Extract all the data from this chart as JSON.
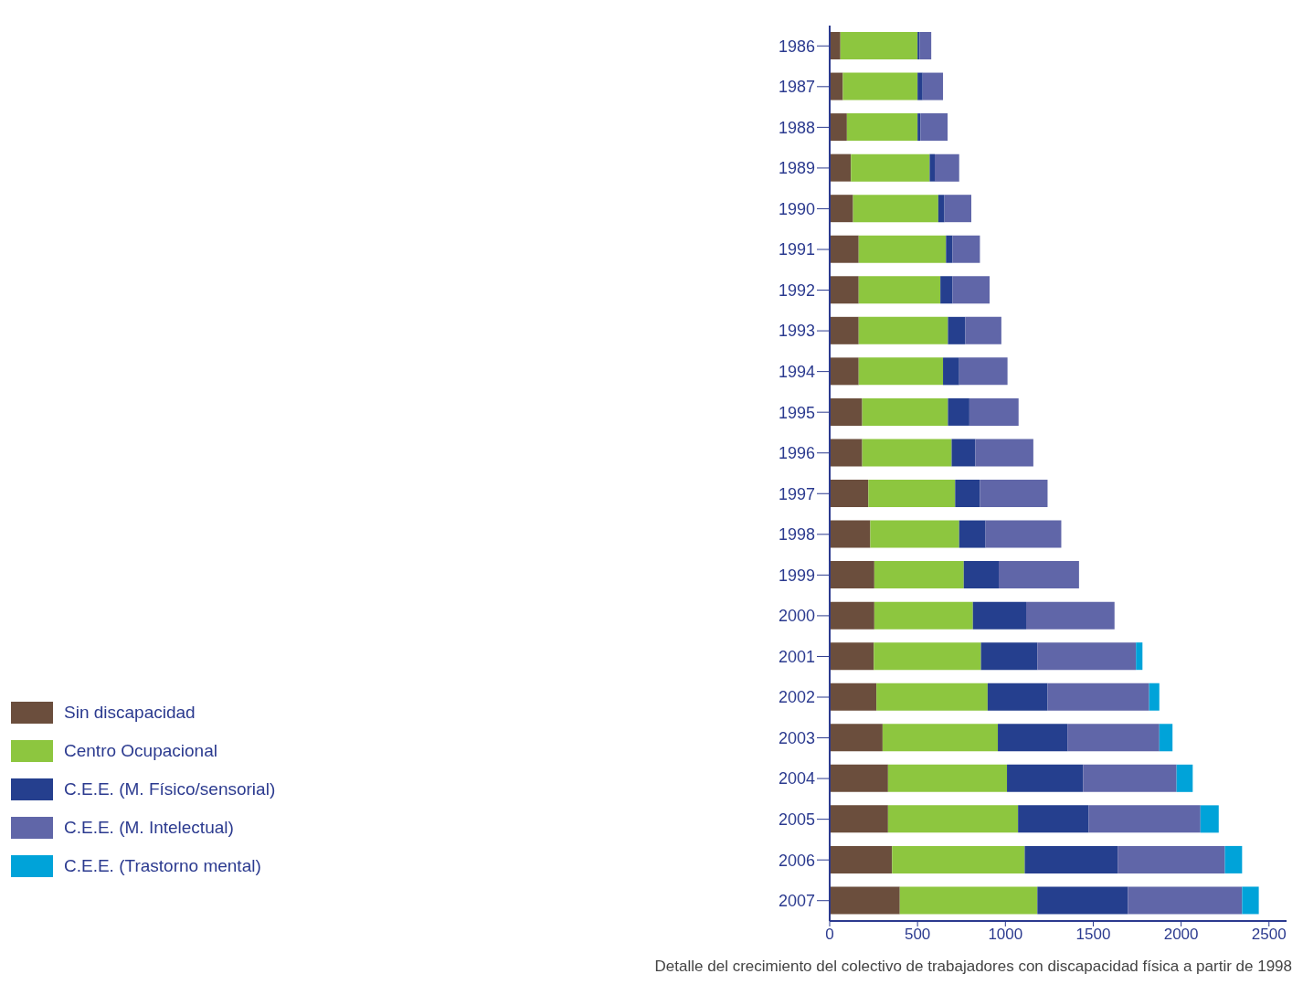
{
  "chart_data": {
    "type": "bar",
    "orientation": "horizontal",
    "stacked": true,
    "categories": [
      "1986",
      "1987",
      "1988",
      "1989",
      "1990",
      "1991",
      "1992",
      "1993",
      "1994",
      "1995",
      "1996",
      "1997",
      "1998",
      "1999",
      "2000",
      "2001",
      "2002",
      "2003",
      "2004",
      "2005",
      "2006",
      "2007"
    ],
    "series": [
      {
        "name": "Sin discapacidad",
        "color": "#6b4e3d",
        "values": [
          61,
          75,
          98,
          121,
          133,
          165,
          165,
          165,
          165,
          185,
          185,
          220,
          231,
          254,
          254,
          251,
          266,
          301,
          332,
          332,
          355,
          399
        ]
      },
      {
        "name": "Centro Ocupacional",
        "color": "#8dc63f",
        "values": [
          439,
          425,
          402,
          448,
          485,
          497,
          465,
          508,
          480,
          488,
          509,
          494,
          506,
          509,
          561,
          610,
          633,
          656,
          677,
          740,
          755,
          783
        ]
      },
      {
        "name": "C.E.E. (M. Físico/sensorial)",
        "color": "#253f8e",
        "values": [
          12,
          29,
          17,
          29,
          35,
          37,
          69,
          99,
          92,
          122,
          135,
          141,
          150,
          199,
          303,
          321,
          341,
          396,
          433,
          402,
          529,
          515
        ]
      },
      {
        "name": "C.E.E. (M. Intelectual)",
        "color": "#6066a8",
        "values": [
          66,
          116,
          154,
          139,
          153,
          156,
          211,
          205,
          275,
          280,
          330,
          385,
          431,
          457,
          503,
          561,
          578,
          523,
          532,
          636,
          610,
          650
        ]
      },
      {
        "name": "C.E.E. (Trastorno mental)",
        "color": "#00a3d9",
        "values": [
          null,
          null,
          null,
          null,
          null,
          null,
          null,
          null,
          null,
          null,
          null,
          null,
          null,
          null,
          null,
          37,
          58,
          75,
          92,
          104,
          98,
          95
        ]
      }
    ],
    "xlim": [
      0,
      2600
    ],
    "xticks": [
      0,
      500,
      1000,
      1500,
      2000,
      2500
    ],
    "grid": false,
    "legend": "bottom left",
    "annotations": [
      "Detalle del crecimiento del colectivo de trabajadores con discapacidad física a partir de 1998"
    ]
  }
}
